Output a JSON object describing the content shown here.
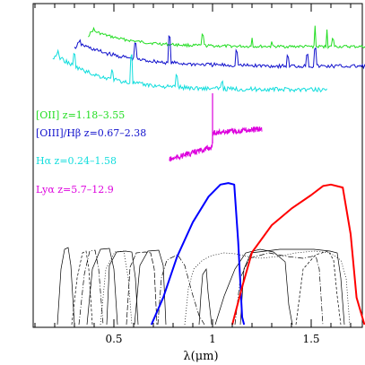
{
  "chart_data": {
    "type": "line",
    "xlabel": "λ(μm)",
    "xlim": [
      0.0,
      1.8
    ],
    "ylabel": "",
    "grid": false,
    "x_ticks": [
      {
        "v": 0.5,
        "label": "0.5"
      },
      {
        "v": 1.0,
        "label": "1"
      },
      {
        "v": 1.5,
        "label": "1.5"
      }
    ],
    "labels": [
      {
        "key": "oii",
        "text": "[OII] z=1.18–3.55",
        "color": "#22dd22"
      },
      {
        "key": "oiii",
        "text": "[OIII]/Hβ z=0.67–2.38",
        "color": "#1111cc"
      },
      {
        "key": "halpha",
        "text": "Hα z=0.24–1.58",
        "color": "#11dddd"
      },
      {
        "key": "lya",
        "text": "Lyα z=5.7–12.9",
        "color": "#dd00dd"
      }
    ],
    "spectra": [
      {
        "key": "oii",
        "color": "#22dd22",
        "x_range": [
          0.37,
          1.8
        ]
      },
      {
        "key": "oiii",
        "color": "#1111cc",
        "x_range": [
          0.3,
          1.8
        ]
      },
      {
        "key": "halpha",
        "color": "#11dddd",
        "x_range": [
          0.19,
          1.58
        ]
      },
      {
        "key": "lya",
        "color": "#dd00dd",
        "x_range": [
          0.78,
          1.25
        ]
      }
    ],
    "filter_curves": [
      {
        "name": "blue-filter",
        "color": "#0000ff",
        "points": [
          [
            0.69,
            0.0
          ],
          [
            0.75,
            0.18
          ],
          [
            0.82,
            0.45
          ],
          [
            0.9,
            0.68
          ],
          [
            0.98,
            0.85
          ],
          [
            1.04,
            0.93
          ],
          [
            1.08,
            0.94
          ],
          [
            1.11,
            0.93
          ],
          [
            1.13,
            0.55
          ],
          [
            1.15,
            0.05
          ],
          [
            1.16,
            0.0
          ]
        ]
      },
      {
        "name": "red-filter",
        "color": "#ff0000",
        "points": [
          [
            1.1,
            0.0
          ],
          [
            1.15,
            0.25
          ],
          [
            1.2,
            0.48
          ],
          [
            1.3,
            0.66
          ],
          [
            1.4,
            0.77
          ],
          [
            1.5,
            0.86
          ],
          [
            1.56,
            0.92
          ],
          [
            1.6,
            0.93
          ],
          [
            1.66,
            0.91
          ],
          [
            1.7,
            0.6
          ],
          [
            1.73,
            0.18
          ],
          [
            1.77,
            0.0
          ]
        ]
      }
    ]
  }
}
